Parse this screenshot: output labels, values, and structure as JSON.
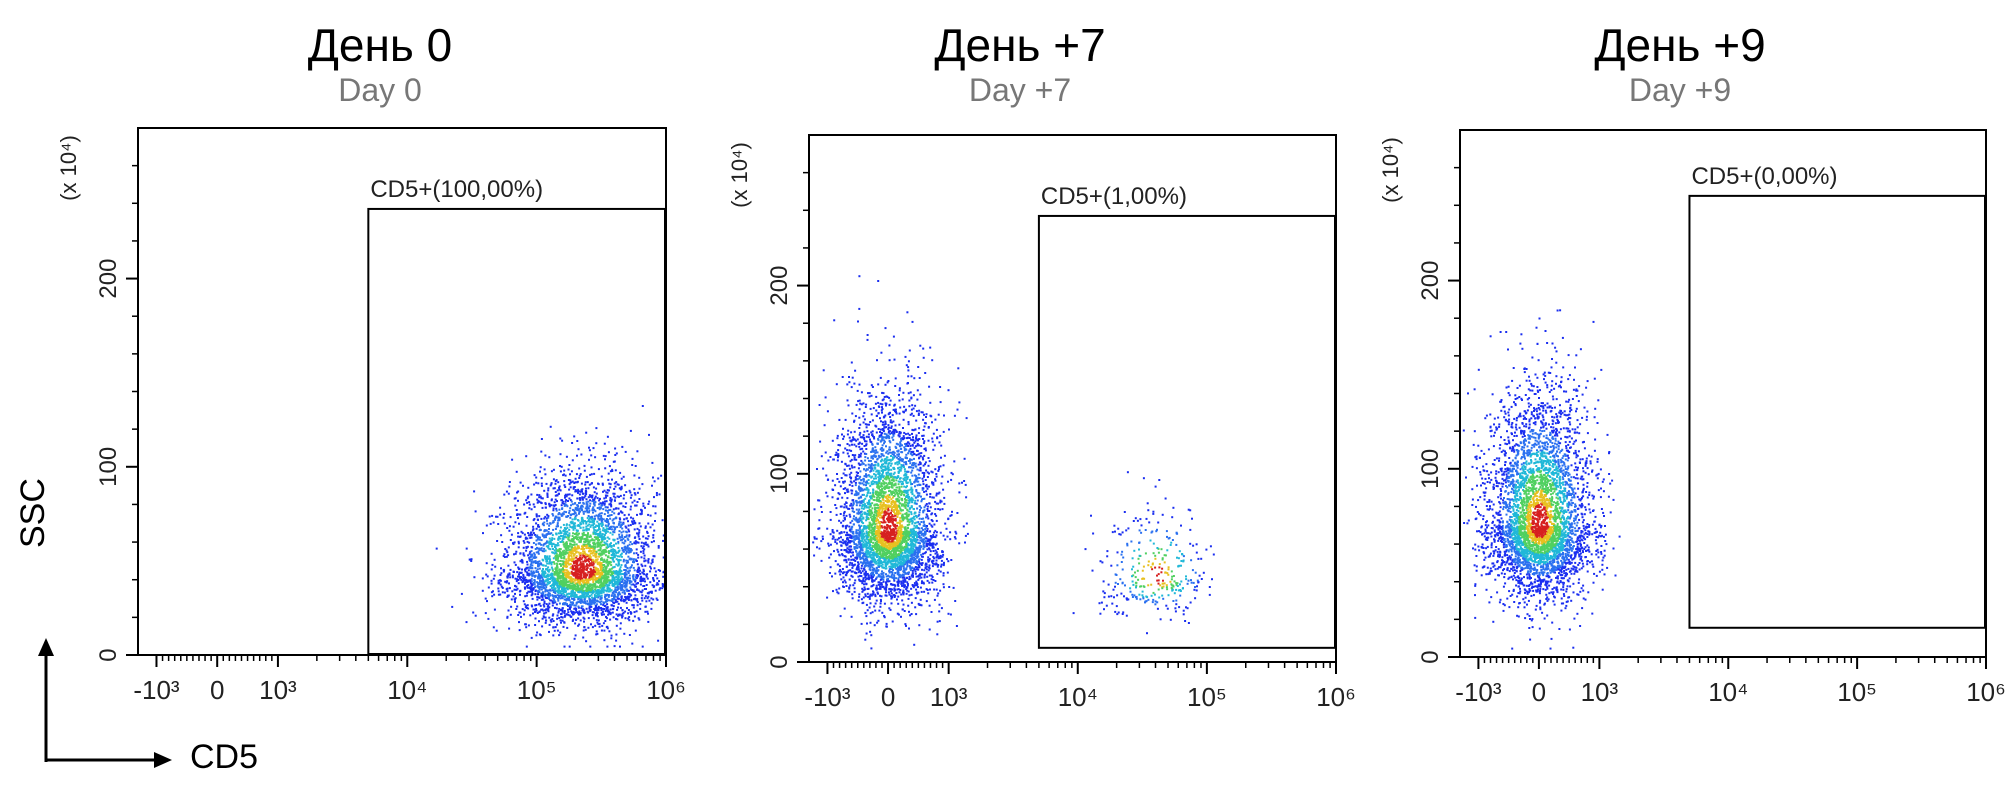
{
  "chart_data": [
    {
      "type": "scatter",
      "title": "День 0",
      "subtitle": "Day 0",
      "xlabel": "CD5",
      "ylabel": "SSC",
      "y_multiplier_label": "(x 10⁴)",
      "x_scale": "biexponential",
      "x_ticks": [
        "-10³",
        "0",
        "10³",
        "10⁴",
        "10⁵",
        "10⁶"
      ],
      "y_ticks": [
        "0",
        "100",
        "200"
      ],
      "ylim": [
        0,
        280
      ],
      "gate": {
        "label": "CD5+(100,00%)",
        "x_range": [
          5000,
          1000000
        ],
        "y_range": [
          0,
          237
        ]
      },
      "populations": [
        {
          "x_log10_center": 5.35,
          "y_center": 45,
          "note": "main cluster"
        }
      ]
    },
    {
      "type": "scatter",
      "title": "День +7",
      "subtitle": "Day +7",
      "xlabel": "CD5",
      "ylabel": "SSC",
      "y_multiplier_label": "(x 10⁴)",
      "x_scale": "biexponential",
      "x_ticks": [
        "-10³",
        "0",
        "10³",
        "10⁴",
        "10⁵",
        "10⁶"
      ],
      "y_ticks": [
        "0",
        "100",
        "200"
      ],
      "ylim": [
        0,
        280
      ],
      "gate": {
        "label": "CD5+(1,00%)",
        "x_range": [
          5000,
          1000000
        ],
        "y_range": [
          7,
          237
        ]
      },
      "populations": [
        {
          "x_center": 0,
          "y_center": 70,
          "note": "CD5- main cluster"
        },
        {
          "x_log10_center": 4.6,
          "y_center": 45,
          "note": "sparse CD5+ cluster"
        }
      ]
    },
    {
      "type": "scatter",
      "title": "День +9",
      "subtitle": "Day +9",
      "xlabel": "CD5",
      "ylabel": "SSC",
      "y_multiplier_label": "(x 10⁴)",
      "x_scale": "biexponential",
      "x_ticks": [
        "-10³",
        "0",
        "10³",
        "10⁴",
        "10⁵",
        "10⁶"
      ],
      "y_ticks": [
        "0",
        "100",
        "200"
      ],
      "ylim": [
        0,
        280
      ],
      "gate": {
        "label": "CD5+(0,00%)",
        "x_range": [
          5000,
          1000000
        ],
        "y_range": [
          15,
          245
        ]
      },
      "populations": [
        {
          "x_center": 0,
          "y_center": 70,
          "note": "CD5- main cluster"
        }
      ]
    }
  ],
  "axis_arrows": {
    "x_label": "CD5",
    "y_label": "SSC"
  }
}
